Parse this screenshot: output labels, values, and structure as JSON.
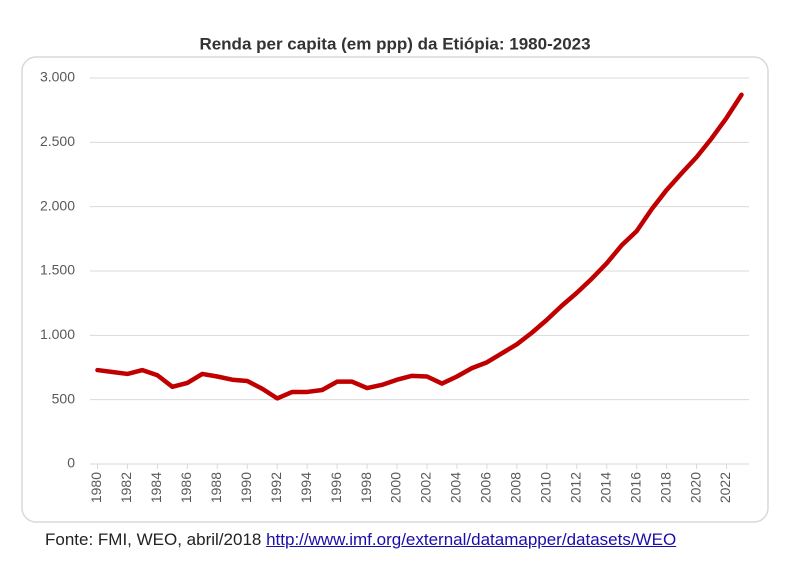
{
  "chart_data": {
    "type": "line",
    "title": "Renda per capita (em ppp) da Etiópia: 1980-2023",
    "x": [
      1980,
      1981,
      1982,
      1983,
      1984,
      1985,
      1986,
      1987,
      1988,
      1989,
      1990,
      1991,
      1992,
      1993,
      1994,
      1995,
      1996,
      1997,
      1998,
      1999,
      2000,
      2001,
      2002,
      2003,
      2004,
      2005,
      2006,
      2007,
      2008,
      2009,
      2010,
      2011,
      2012,
      2013,
      2014,
      2015,
      2016,
      2017,
      2018,
      2019,
      2020,
      2021,
      2022,
      2023
    ],
    "series": [
      {
        "name": "Renda per capita",
        "color": "#c00000",
        "values": [
          730,
          715,
          700,
          730,
          690,
          600,
          630,
          700,
          680,
          655,
          645,
          585,
          510,
          560,
          560,
          575,
          640,
          640,
          590,
          615,
          655,
          685,
          680,
          625,
          680,
          745,
          790,
          860,
          930,
          1020,
          1120,
          1230,
          1330,
          1440,
          1560,
          1700,
          1810,
          1980,
          2130,
          2260,
          2385,
          2530,
          2690,
          2870
        ]
      }
    ],
    "xlim": [
      1979.5,
      2023.5
    ],
    "xticks": [
      1980,
      1982,
      1984,
      1986,
      1988,
      1990,
      1992,
      1994,
      1996,
      1998,
      2000,
      2002,
      2004,
      2006,
      2008,
      2010,
      2012,
      2014,
      2016,
      2018,
      2020,
      2022
    ],
    "ylim": [
      0,
      3000
    ],
    "yticks": [
      0,
      500,
      {
        "value": 1000,
        "label": "1.000"
      },
      {
        "value": 1500,
        "label": "1.500"
      },
      {
        "value": 2000,
        "label": "2.000"
      },
      {
        "value": 2500,
        "label": "2.500"
      },
      {
        "value": 3000,
        "label": "3.000"
      }
    ],
    "grid": true,
    "source": "Fonte: FMI, WEO, abril/2018",
    "link": "http://www.imf.org/external/datamapper/datasets/WEO"
  }
}
